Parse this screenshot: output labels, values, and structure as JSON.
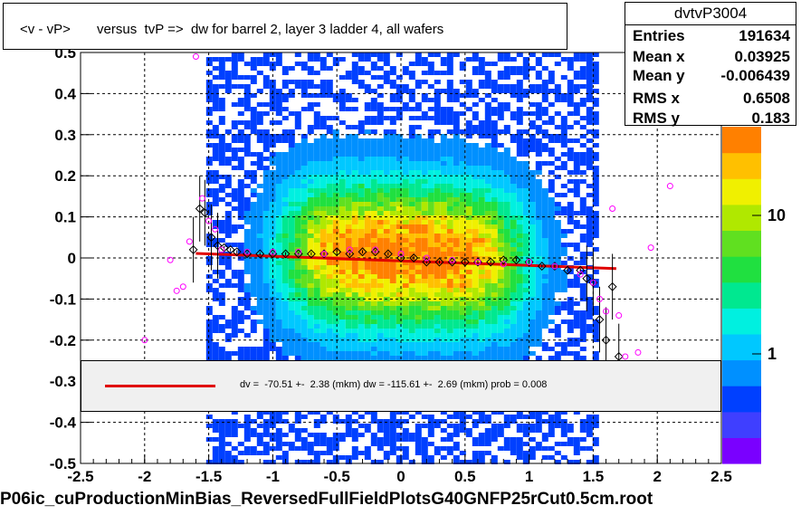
{
  "title": "<v - vP>       versus  tvP =>  dw for barrel 2, layer 3 ladder 4, all wafers",
  "stats": {
    "name": "dvtvP3004",
    "rows": [
      {
        "label": "Entries",
        "value": "191634"
      },
      {
        "label": "Mean x",
        "value": "0.03925"
      },
      {
        "label": "Mean y",
        "value": "-0.006439"
      },
      {
        "label": "RMS x",
        "value": "0.6508"
      },
      {
        "label": "RMS y",
        "value": "0.183"
      }
    ]
  },
  "fit_legend": "dv =  -70.51 +-  2.38 (mkm) dw = -115.61 +-  2.69 (mkm) prob = 0.008",
  "footer": "P06ic_cuProductionMinBias_ReversedFullFieldPlotsG40GNFP25rCut0.5cm.root",
  "colors": {
    "fit": "#e00000",
    "grid": "#000000",
    "profile_black": "#000000",
    "profile_magenta": "#ff00ff"
  },
  "chart_data": {
    "type": "heatmap",
    "title": "<v - vP>       versus  tvP =>  dw for barrel 2, layer 3 ladder 4, all wafers",
    "xlim": [
      -2.5,
      2.5
    ],
    "ylim": [
      -0.5,
      0.5
    ],
    "x_ticks": [
      -2.5,
      -2,
      -1.5,
      -1,
      -0.5,
      0,
      0.5,
      1,
      1.5,
      2,
      2.5
    ],
    "x_tick_labels": [
      "-2.5",
      "-2",
      "-1.5",
      "-1",
      "-0.5",
      "0",
      "0.5",
      "1",
      "1.5",
      "2",
      "2.5"
    ],
    "y_ticks": [
      -0.5,
      -0.4,
      -0.3,
      -0.2,
      -0.1,
      0,
      0.1,
      0.2,
      0.3,
      0.4,
      0.5
    ],
    "y_tick_labels": [
      "-0.5",
      "-0.4",
      "-0.3",
      "-0.2",
      "-0.1",
      "0",
      "0.1",
      "0.2",
      "0.3",
      "0.4",
      "0.5"
    ],
    "grid": true,
    "z_scale": "log",
    "z_tick_labels": [
      "1",
      "10",
      "10"
    ],
    "z_exponent_label": "2",
    "fit_line": {
      "x": [
        -1.6,
        1.68
      ],
      "y": [
        0.011,
        -0.026
      ]
    },
    "profile_black": {
      "x": [
        -1.62,
        -1.57,
        -1.53,
        -1.48,
        -1.43,
        -1.38,
        -1.33,
        -1.28,
        -1.2,
        -1.1,
        -1.0,
        -0.9,
        -0.8,
        -0.7,
        -0.6,
        -0.5,
        -0.4,
        -0.3,
        -0.2,
        -0.1,
        0.0,
        0.1,
        0.2,
        0.3,
        0.4,
        0.5,
        0.6,
        0.7,
        0.8,
        0.9,
        1.0,
        1.1,
        1.2,
        1.3,
        1.4,
        1.45,
        1.5,
        1.55,
        1.6,
        1.65,
        1.7
      ],
      "y": [
        0.02,
        0.12,
        0.11,
        0.05,
        0.03,
        0.025,
        0.02,
        0.015,
        0.01,
        0.01,
        0.01,
        0.01,
        0.01,
        0.01,
        0.01,
        0.015,
        0.01,
        0.015,
        0.015,
        0.01,
        0.0,
        0.0,
        -0.01,
        -0.01,
        -0.01,
        -0.01,
        -0.01,
        -0.01,
        -0.005,
        -0.005,
        -0.01,
        -0.02,
        -0.02,
        -0.03,
        -0.03,
        -0.05,
        -0.06,
        -0.15,
        -0.2,
        -0.07,
        -0.24
      ]
    },
    "profile_magenta": {
      "x": [
        -2.0,
        -1.8,
        -1.75,
        -1.7,
        -1.65,
        -1.6,
        -1.55,
        -1.5,
        -1.45,
        -1.4,
        -1.2,
        -1.0,
        -0.8,
        -0.6,
        -0.4,
        -0.2,
        0.0,
        0.2,
        0.4,
        0.6,
        0.8,
        1.0,
        1.2,
        1.4,
        1.5,
        1.55,
        1.6,
        1.65,
        1.7,
        1.75,
        1.85,
        1.95,
        2.1
      ],
      "y": [
        -0.2,
        -0.005,
        -0.08,
        -0.07,
        0.04,
        0.49,
        0.145,
        0.09,
        0.07,
        0.02,
        0.015,
        0.015,
        0.015,
        0.01,
        0.02,
        0.02,
        0.01,
        0.0,
        -0.005,
        -0.01,
        -0.015,
        -0.01,
        -0.02,
        -0.04,
        -0.06,
        -0.1,
        -0.13,
        0.12,
        -0.14,
        -0.24,
        -0.23,
        0.025,
        0.175
      ]
    }
  }
}
